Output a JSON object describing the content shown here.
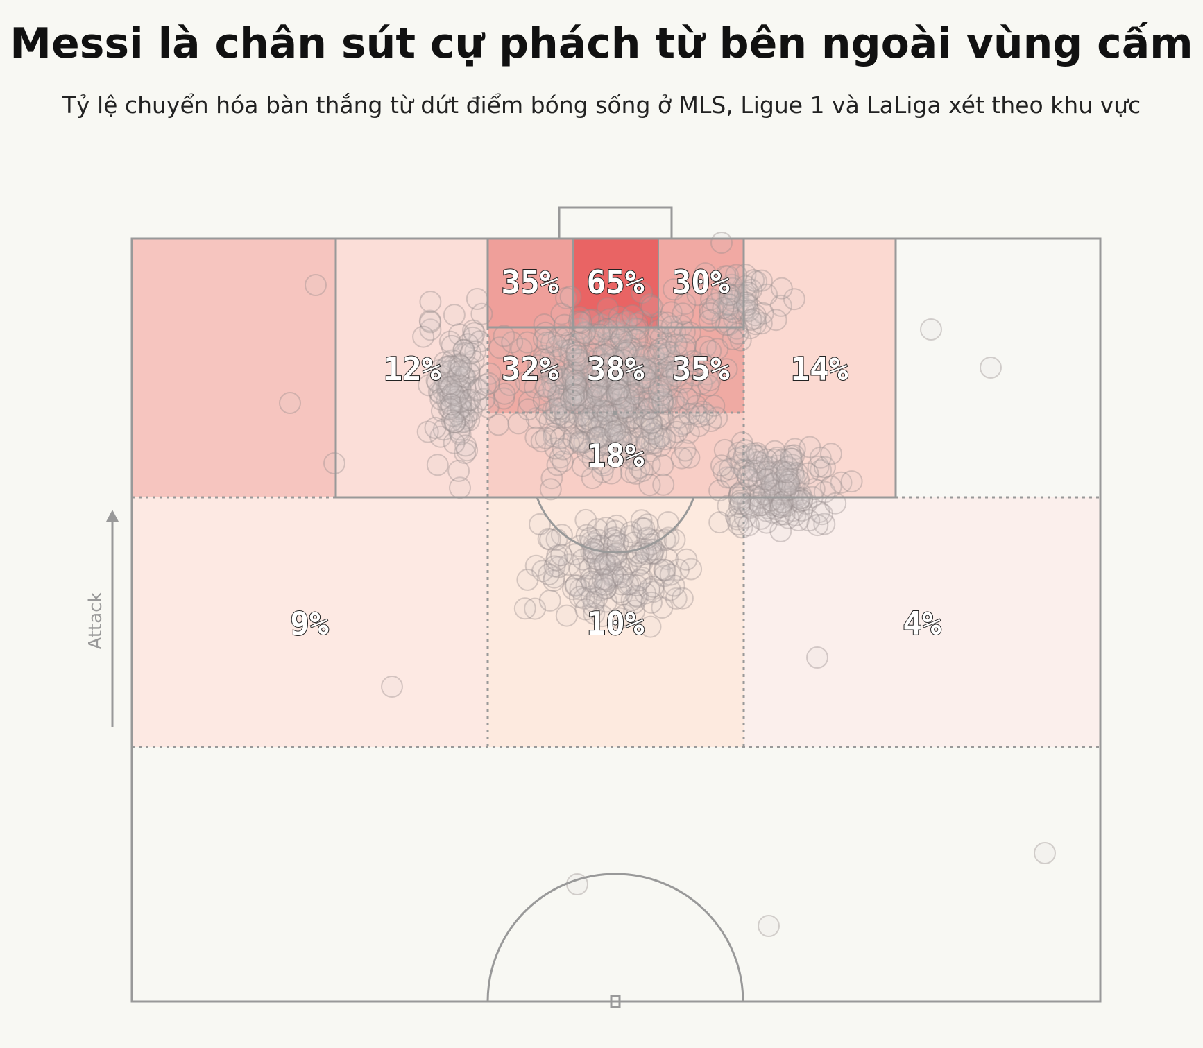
{
  "header": {
    "title": "Messi là chân sút cự phách từ bên ngoài vùng cấm",
    "subtitle": "Tỷ lệ chuyển hóa bàn thắng từ dứt điểm bóng sống ở MLS, Ligue 1 và LaLiga xét theo khu vực"
  },
  "attack_label": "Attack",
  "chart_data": {
    "type": "heatmap",
    "title": "Messi là chân sút cự phách từ bên ngoài vùng cấm",
    "subtitle": "Tỷ lệ chuyển hóa bàn thắng từ dứt điểm bóng sống ở MLS, Ligue 1 và LaLiga xét theo khu vực",
    "value_unit": "percent",
    "zones": [
      {
        "id": "six-yard-left",
        "label": "35%",
        "value": 35
      },
      {
        "id": "six-yard-center",
        "label": "65%",
        "value": 65
      },
      {
        "id": "six-yard-right",
        "label": "30%",
        "value": 30
      },
      {
        "id": "box-left",
        "label": "12%",
        "value": 12
      },
      {
        "id": "box-inner-left",
        "label": "32%",
        "value": 32
      },
      {
        "id": "box-inner-center",
        "label": "38%",
        "value": 38
      },
      {
        "id": "box-inner-right",
        "label": "35%",
        "value": 35
      },
      {
        "id": "box-right",
        "label": "14%",
        "value": 14
      },
      {
        "id": "box-edge-center",
        "label": "18%",
        "value": 18
      },
      {
        "id": "outside-left",
        "label": "9%",
        "value": 9
      },
      {
        "id": "outside-center",
        "label": "10%",
        "value": 10
      },
      {
        "id": "outside-right",
        "label": "4%",
        "value": 4
      },
      {
        "id": "wide-left",
        "label": "",
        "value": null
      },
      {
        "id": "wide-right",
        "label": "",
        "value": null
      }
    ],
    "colors": {
      "background": "#f8f8f3",
      "pitch_lines": "#999999",
      "shot_marker": "#b8b2b2",
      "scale_high": "#e23c3c",
      "scale_low": "#fbece8"
    }
  }
}
